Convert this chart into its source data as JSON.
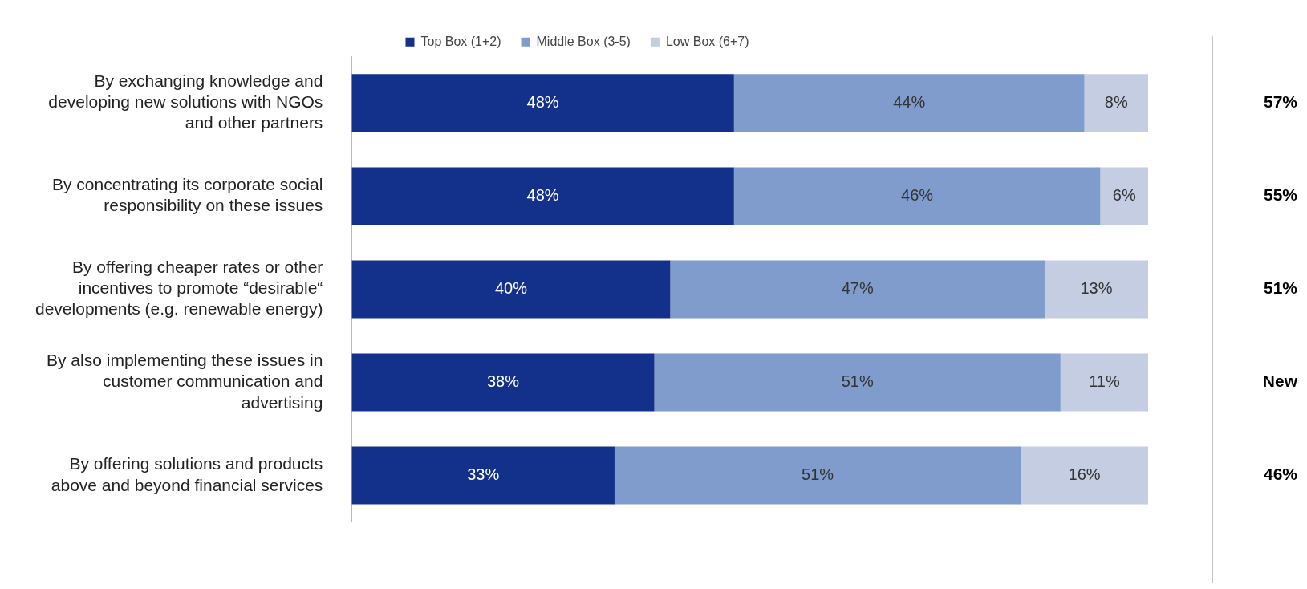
{
  "chart_data": {
    "type": "bar",
    "orientation": "horizontal",
    "stacked": true,
    "legend": "top",
    "tick_labels": "y",
    "grid": false,
    "categories": [
      "By exchanging knowledge and developing new solutions with NGOs and other partners",
      "By concentrating its corporate social responsibility on these issues",
      "By offering cheaper rates or other incentives to promote “desirable“ developments (e.g. renewable energy)",
      "By also implementing these issues in customer communication and advertising",
      "By offering solutions and products above and beyond financial services"
    ],
    "series": [
      {
        "name": "Top Box (1+2)",
        "color": "#13318a",
        "values": [
          48,
          48,
          40,
          38,
          33
        ],
        "value_labels": [
          "48%",
          "48%",
          "40%",
          "38%",
          "33%"
        ]
      },
      {
        "name": "Middle Box (3-5)",
        "color": "#7f9ccd",
        "values": [
          44,
          46,
          47,
          51,
          51
        ],
        "value_labels": [
          "44%",
          "46%",
          "47%",
          "51%",
          "51%"
        ]
      },
      {
        "name": "Low Box (6+7)",
        "color": "#c5cde3",
        "values": [
          8,
          6,
          13,
          11,
          16
        ],
        "value_labels": [
          "8%",
          "6%",
          "13%",
          "11%",
          "16%"
        ]
      }
    ],
    "annotations": [
      "57%",
      "55%",
      "51%",
      "New",
      "46%"
    ]
  }
}
